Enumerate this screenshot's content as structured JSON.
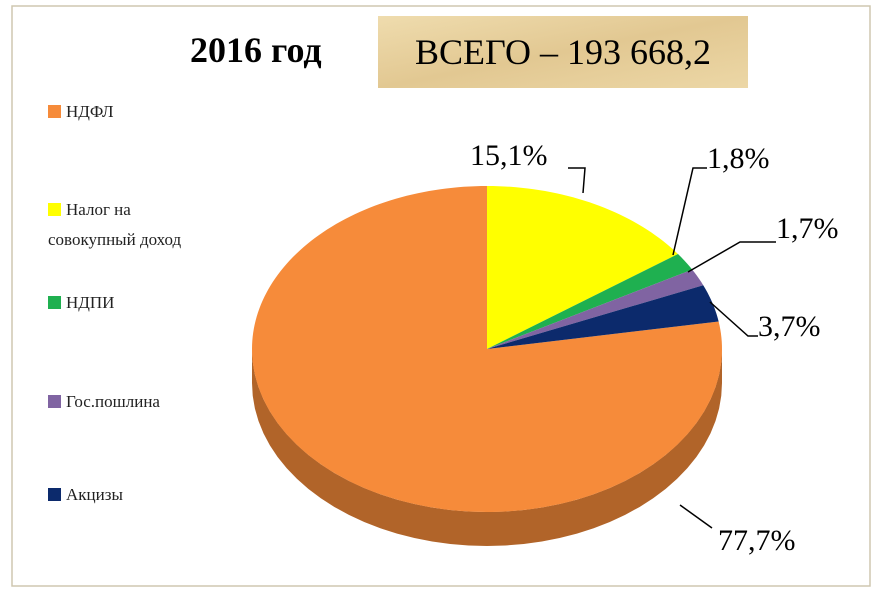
{
  "chart_data": {
    "type": "pie",
    "title": "2016 год",
    "subtitle": "ВСЕГО – 193 668,2",
    "categories": [
      "НДФЛ",
      "Налог на совокупный доход",
      "НДПИ",
      "Гос.пошлина",
      "Акцизы"
    ],
    "values": [
      77.7,
      15.1,
      1.8,
      1.7,
      3.7
    ],
    "value_labels": [
      "77,7%",
      "15,1%",
      "1,8%",
      "1,7%",
      "3,7%"
    ],
    "colors": [
      "#f68b3a",
      "#ffff00",
      "#1fb050",
      "#8064a2",
      "#0c2a6c"
    ],
    "legend": "left"
  }
}
